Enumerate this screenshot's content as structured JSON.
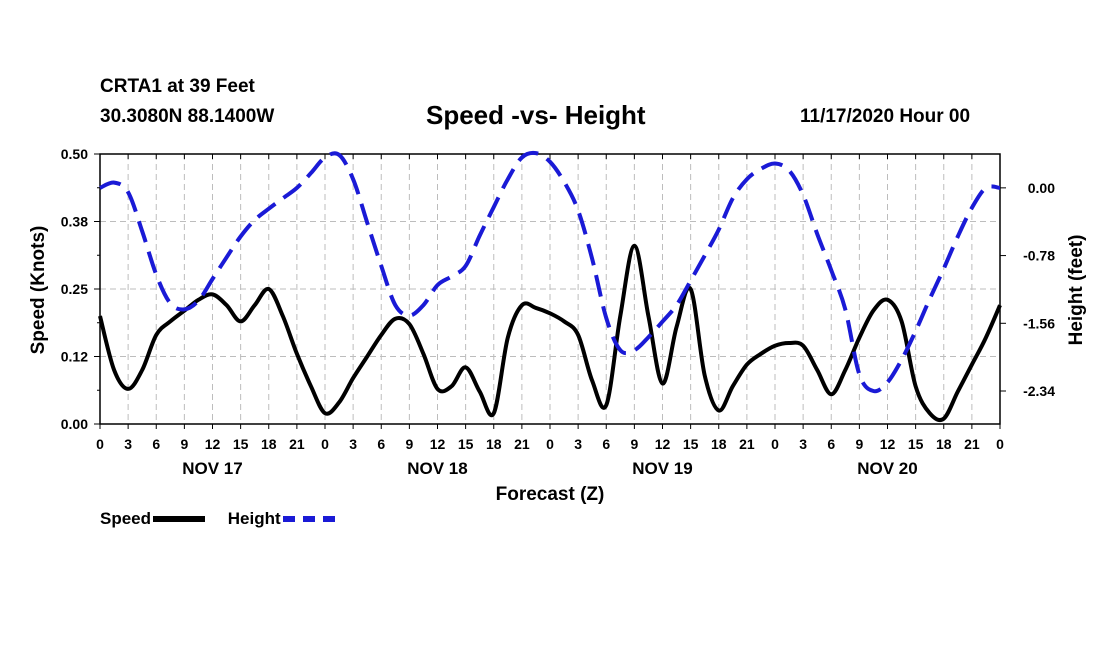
{
  "header": {
    "station": "CRTA1 at 39 Feet",
    "coords": "30.3080N 88.1400W",
    "title": "Speed -vs- Height",
    "datestamp": "11/17/2020 Hour 00"
  },
  "legend": {
    "speed_label": "Speed",
    "height_label": "Height"
  },
  "colors": {
    "speed": "#000000",
    "height": "#1a1ad6",
    "grid": "#bdbdbd"
  },
  "chart_data": {
    "type": "line",
    "title": "Speed -vs- Height",
    "xlabel": "Forecast (Z)",
    "ylabel_left": "Speed (Knots)",
    "ylabel_right": "Height (feet)",
    "x_hours_range": [
      0,
      96
    ],
    "ylim_left": [
      0,
      0.5
    ],
    "ylim_right": [
      -2.72,
      0.39
    ],
    "yticks_left": [
      "0.00",
      "0.12",
      "0.25",
      "0.38",
      "0.50"
    ],
    "yticks_left_values": [
      0,
      0.125,
      0.25,
      0.375,
      0.5
    ],
    "yticks_right": [
      "0.00",
      "-0.78",
      "-1.56",
      "-2.34"
    ],
    "yticks_right_values": [
      0,
      -0.78,
      -1.56,
      -2.34
    ],
    "xtick_labels": [
      "0",
      "3",
      "6",
      "9",
      "12",
      "15",
      "18",
      "21",
      "0",
      "3",
      "6",
      "9",
      "12",
      "15",
      "18",
      "21",
      "0",
      "3",
      "6",
      "9",
      "12",
      "15",
      "18",
      "21",
      "0",
      "3",
      "6",
      "9",
      "12",
      "15",
      "18",
      "21",
      "0"
    ],
    "day_labels": [
      "NOV 17",
      "NOV 18",
      "NOV 19",
      "NOV 20"
    ],
    "day_label_hours": [
      12,
      36,
      60,
      84
    ],
    "grid": true,
    "series": [
      {
        "name": "Speed",
        "axis": "left",
        "style": "solid",
        "x": [
          0,
          1.5,
          3,
          4.5,
          6,
          7.5,
          9,
          10.5,
          12,
          13.5,
          15,
          16.5,
          18,
          19.5,
          21,
          22.5,
          24,
          25.5,
          27,
          28.5,
          30,
          31.5,
          33,
          34.5,
          36,
          37.5,
          39,
          40.5,
          42,
          43.5,
          45,
          46.5,
          48,
          49.5,
          51,
          52.5,
          54,
          55.5,
          57,
          58.5,
          60,
          61.5,
          63,
          64.5,
          66,
          67.5,
          69,
          70.5,
          72,
          73.5,
          75,
          76.5,
          78,
          79.5,
          81,
          82.5,
          84,
          85.5,
          87,
          88.5,
          90,
          91.5,
          93,
          94.5,
          96
        ],
        "values": [
          0.2,
          0.1,
          0.065,
          0.1,
          0.165,
          0.19,
          0.21,
          0.23,
          0.24,
          0.22,
          0.19,
          0.22,
          0.25,
          0.2,
          0.13,
          0.07,
          0.02,
          0.04,
          0.085,
          0.125,
          0.165,
          0.195,
          0.185,
          0.13,
          0.065,
          0.07,
          0.105,
          0.06,
          0.02,
          0.16,
          0.22,
          0.215,
          0.205,
          0.19,
          0.165,
          0.08,
          0.035,
          0.2,
          0.33,
          0.2,
          0.075,
          0.18,
          0.25,
          0.09,
          0.025,
          0.07,
          0.11,
          0.13,
          0.145,
          0.15,
          0.145,
          0.1,
          0.055,
          0.1,
          0.16,
          0.21,
          0.23,
          0.19,
          0.07,
          0.02,
          0.01,
          0.06,
          0.11,
          0.16,
          0.22
        ]
      },
      {
        "name": "Height",
        "axis": "right",
        "style": "dashed",
        "x": [
          0,
          1.5,
          3,
          4.5,
          6,
          7.5,
          9,
          10.5,
          12,
          13.5,
          15,
          16.5,
          18,
          19.5,
          21,
          22.5,
          24,
          25.5,
          27,
          28.5,
          30,
          31.5,
          33,
          34.5,
          36,
          37.5,
          39,
          40.5,
          42,
          43.5,
          45,
          46.5,
          48,
          49.5,
          51,
          52.5,
          54,
          55.5,
          57,
          58.5,
          60,
          61.5,
          63,
          64.5,
          66,
          67.5,
          69,
          70.5,
          72,
          73.5,
          75,
          76.5,
          78,
          79.5,
          81,
          82.5,
          84,
          85.5,
          87,
          88.5,
          90,
          91.5,
          93,
          94.5,
          96
        ],
        "values": [
          0.0,
          0.06,
          -0.05,
          -0.5,
          -1.0,
          -1.33,
          -1.4,
          -1.3,
          -1.05,
          -0.8,
          -0.56,
          -0.37,
          -0.24,
          -0.12,
          0.0,
          0.17,
          0.35,
          0.38,
          0.1,
          -0.4,
          -0.9,
          -1.35,
          -1.47,
          -1.35,
          -1.12,
          -1.02,
          -0.9,
          -0.55,
          -0.22,
          0.1,
          0.35,
          0.4,
          0.3,
          0.07,
          -0.26,
          -0.82,
          -1.5,
          -1.87,
          -1.87,
          -1.72,
          -1.54,
          -1.35,
          -1.07,
          -0.78,
          -0.48,
          -0.12,
          0.1,
          0.22,
          0.28,
          0.2,
          -0.08,
          -0.53,
          -0.95,
          -1.4,
          -2.15,
          -2.34,
          -2.24,
          -1.98,
          -1.65,
          -1.28,
          -0.93,
          -0.56,
          -0.23,
          0.0,
          0.0
        ]
      }
    ]
  }
}
